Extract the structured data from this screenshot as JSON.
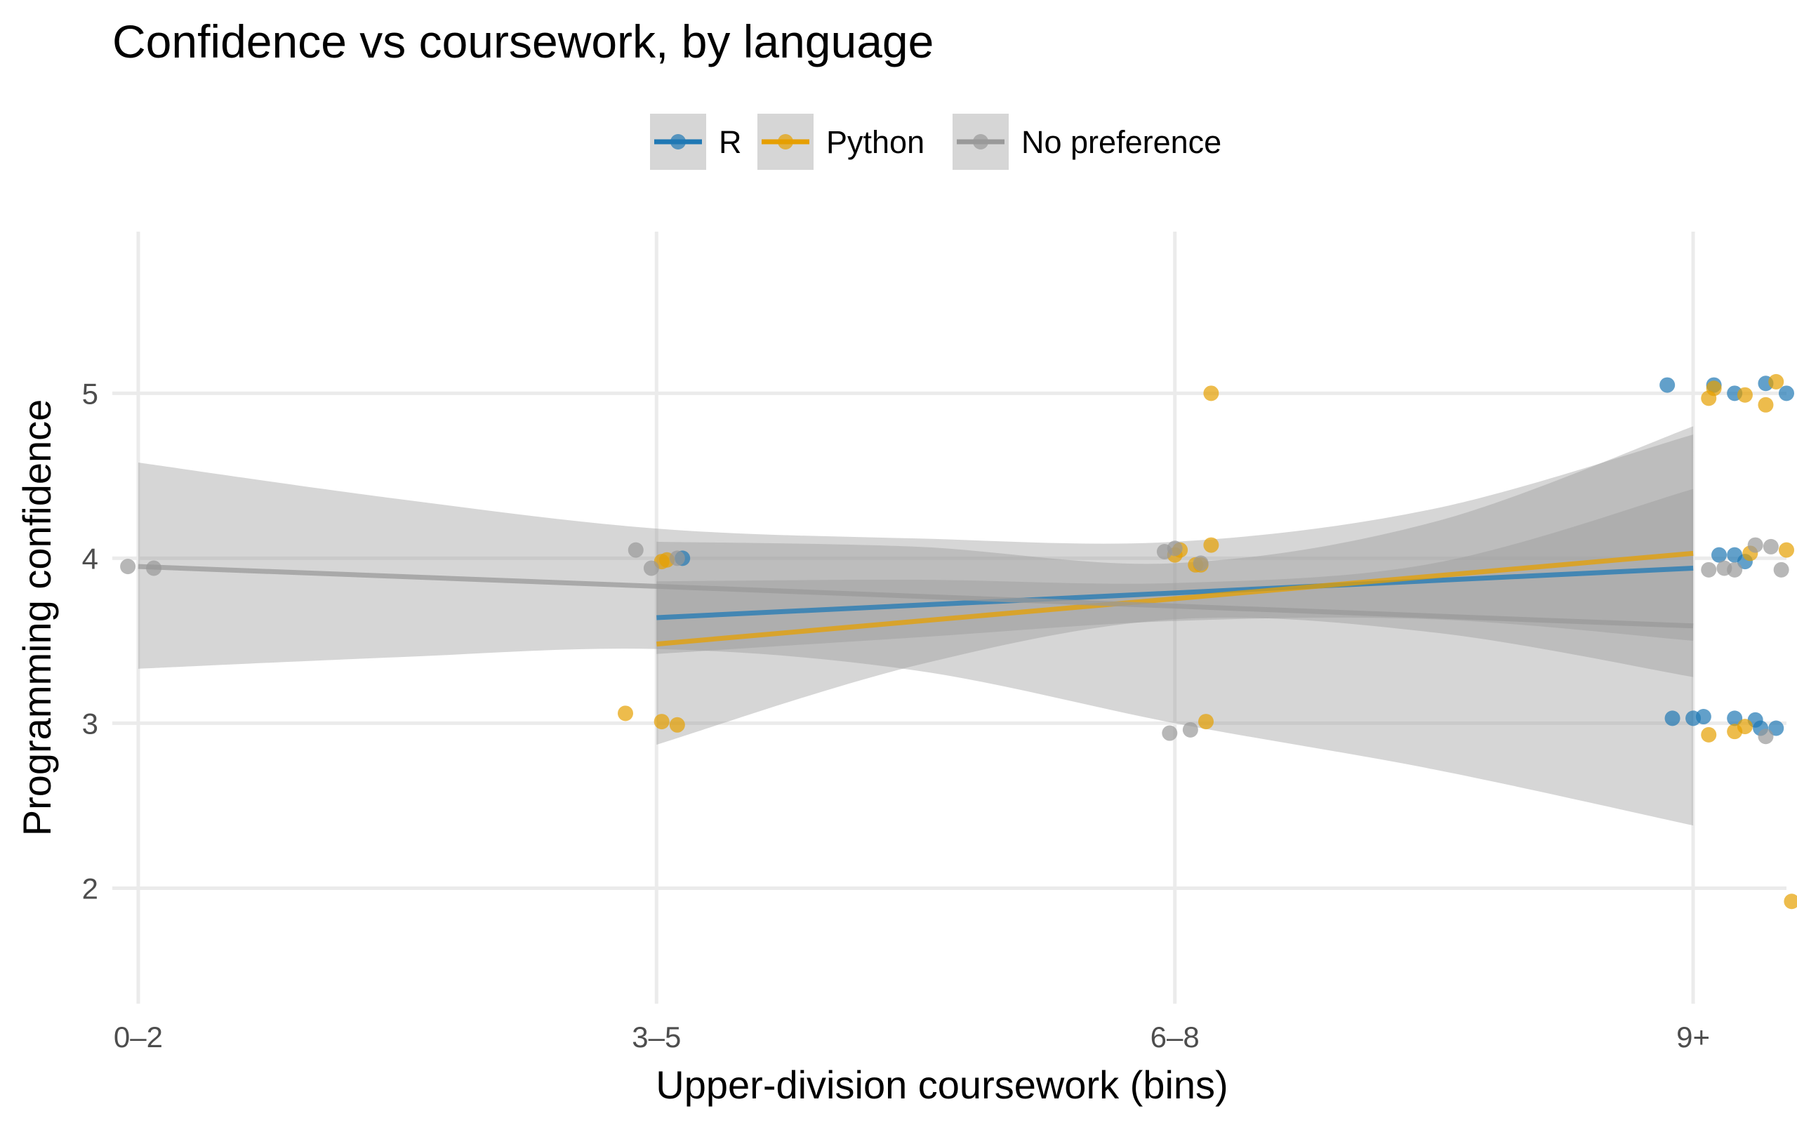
{
  "chart_data": {
    "type": "scatter",
    "title": "Confidence vs coursework, by language",
    "xlabel": "Upper-division coursework (bins)",
    "ylabel": "Programming confidence",
    "categories": [
      "0–2",
      "3–5",
      "6–8",
      "9+"
    ],
    "x_range": [
      -0.05,
      3.18
    ],
    "ylim": [
      1.3,
      5.98
    ],
    "y_ticks": [
      2,
      3,
      4,
      5
    ],
    "grid": true,
    "legend_position": "top",
    "series": [
      {
        "name": "R",
        "color": "#1F78B4",
        "points": [
          [
            1.05,
            4.0
          ],
          [
            2.96,
            3.03
          ],
          [
            3.0,
            3.03
          ],
          [
            3.02,
            3.04
          ],
          [
            3.08,
            3.03
          ],
          [
            3.12,
            3.02
          ],
          [
            3.13,
            2.97
          ],
          [
            3.16,
            2.97
          ],
          [
            3.05,
            4.02
          ],
          [
            3.08,
            4.02
          ],
          [
            3.1,
            3.98
          ],
          [
            2.95,
            5.05
          ],
          [
            3.04,
            5.05
          ],
          [
            3.08,
            5.0
          ],
          [
            3.14,
            5.06
          ],
          [
            3.18,
            5.0
          ]
        ],
        "trend": {
          "x": [
            1,
            3
          ],
          "y": [
            3.64,
            3.94
          ]
        },
        "ci": {
          "x": [
            1,
            1.5,
            2,
            2.5,
            3
          ],
          "lower": [
            3.42,
            3.52,
            3.62,
            3.63,
            3.5
          ],
          "upper": [
            3.86,
            3.87,
            3.85,
            3.97,
            4.42
          ]
        }
      },
      {
        "name": "Python",
        "color": "#E69F00",
        "points": [
          [
            0.94,
            3.06
          ],
          [
            1.01,
            3.01
          ],
          [
            1.04,
            2.99
          ],
          [
            1.01,
            3.98
          ],
          [
            1.02,
            3.99
          ],
          [
            2.0,
            4.02
          ],
          [
            2.01,
            4.05
          ],
          [
            2.04,
            3.96
          ],
          [
            2.07,
            4.08
          ],
          [
            2.05,
            3.96
          ],
          [
            2.06,
            3.01
          ],
          [
            2.07,
            5.0
          ],
          [
            3.03,
            2.93
          ],
          [
            3.08,
            2.95
          ],
          [
            3.1,
            2.98
          ],
          [
            3.11,
            4.03
          ],
          [
            3.18,
            4.05
          ],
          [
            3.04,
            5.03
          ],
          [
            3.03,
            4.97
          ],
          [
            3.1,
            4.99
          ],
          [
            3.14,
            4.93
          ],
          [
            3.16,
            5.07
          ],
          [
            3.19,
            1.92
          ]
        ],
        "trend": {
          "x": [
            1,
            3
          ],
          "y": [
            3.48,
            4.03
          ]
        },
        "ci": {
          "x": [
            1,
            1.5,
            2,
            2.5,
            3
          ],
          "lower": [
            2.87,
            3.35,
            3.63,
            3.55,
            3.28
          ],
          "upper": [
            4.1,
            4.07,
            3.97,
            4.22,
            4.8
          ]
        }
      },
      {
        "name": "No preference",
        "color": "#999999",
        "points": [
          [
            -0.02,
            3.95
          ],
          [
            0.03,
            3.94
          ],
          [
            0.96,
            4.05
          ],
          [
            0.99,
            3.94
          ],
          [
            1.04,
            4.0
          ],
          [
            1.98,
            4.04
          ],
          [
            2.0,
            4.06
          ],
          [
            2.05,
            3.97
          ],
          [
            1.99,
            2.94
          ],
          [
            2.03,
            2.96
          ],
          [
            3.03,
            3.93
          ],
          [
            3.06,
            3.94
          ],
          [
            3.08,
            3.93
          ],
          [
            3.12,
            4.08
          ],
          [
            3.15,
            4.07
          ],
          [
            3.17,
            3.93
          ],
          [
            3.14,
            2.92
          ]
        ],
        "trend": {
          "x": [
            0,
            3
          ],
          "y": [
            3.95,
            3.59
          ]
        },
        "ci": {
          "x": [
            0,
            0.5,
            1,
            1.5,
            2,
            2.5,
            3
          ],
          "lower": [
            3.33,
            3.4,
            3.45,
            3.32,
            3.0,
            2.72,
            2.38
          ],
          "upper": [
            4.58,
            4.36,
            4.18,
            4.12,
            4.1,
            4.3,
            4.75
          ]
        }
      }
    ]
  }
}
